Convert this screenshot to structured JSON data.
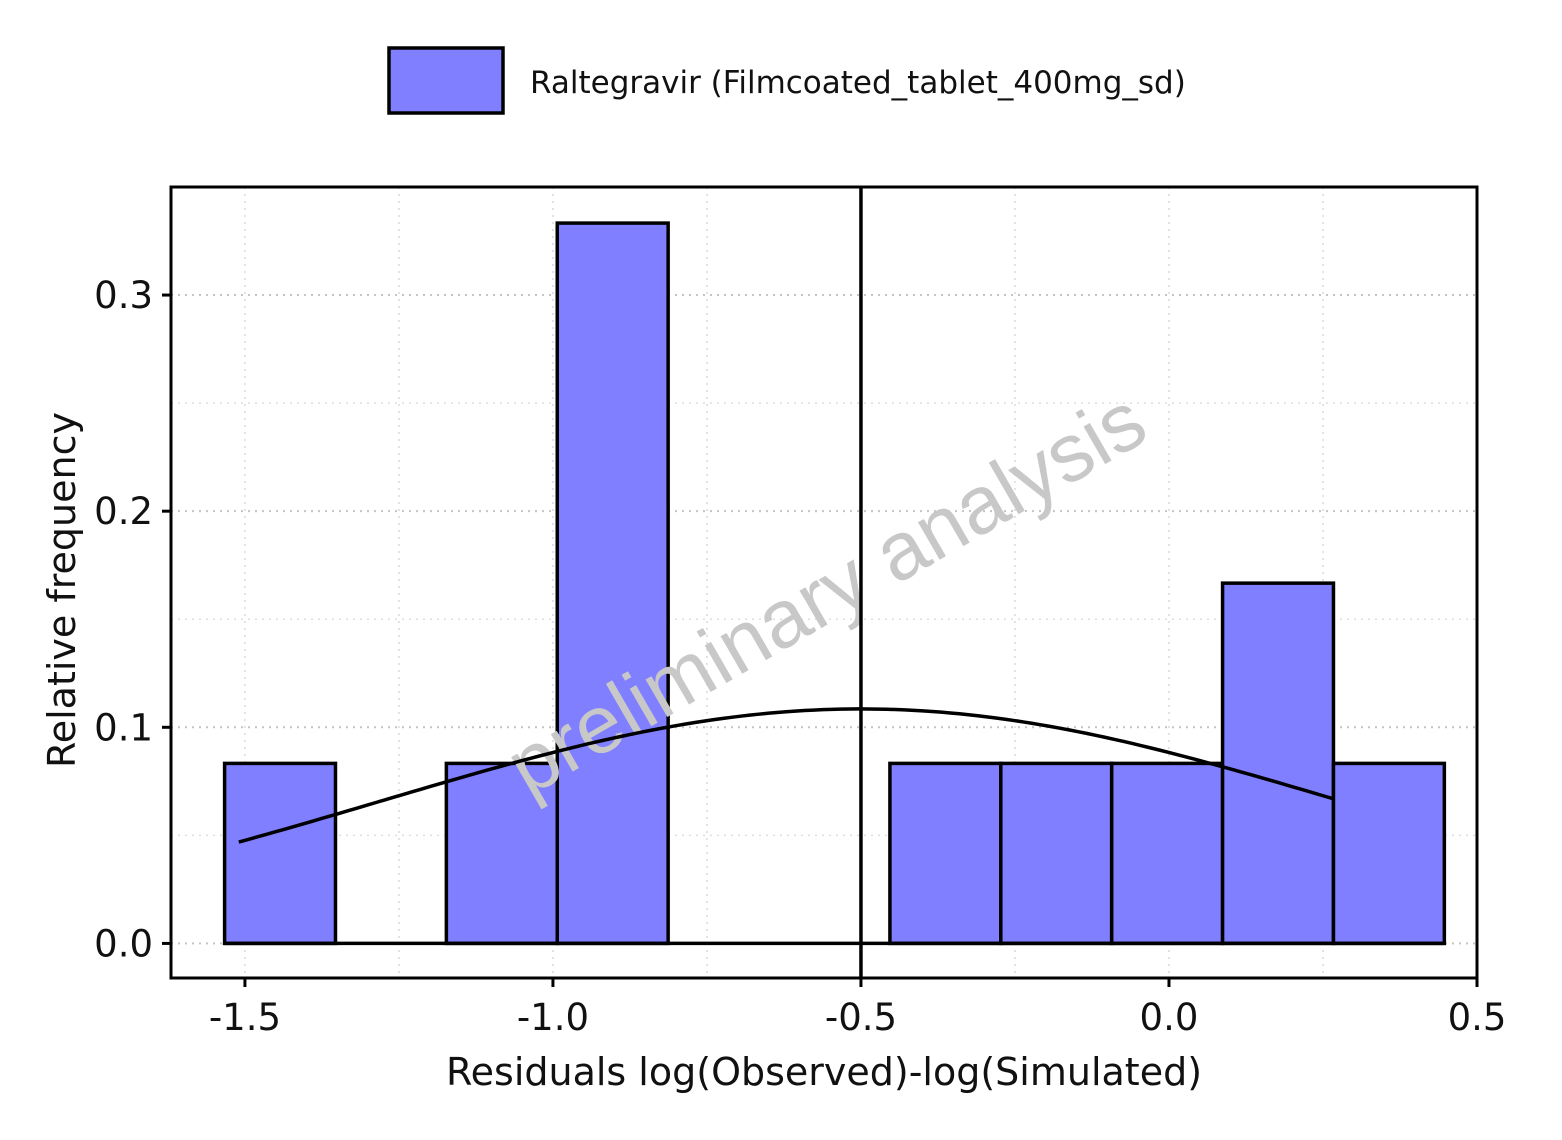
{
  "chart_data": {
    "type": "bar",
    "subtype": "histogram",
    "xlabel": "Residuals log(Observed)-log(Simulated)",
    "ylabel": "Relative frequency",
    "xlim": [
      -1.62,
      0.5
    ],
    "ylim": [
      -0.016,
      0.35
    ],
    "xticks": [
      -1.5,
      -1.0,
      -0.5,
      0.0,
      0.5
    ],
    "xtick_labels": [
      "-1.5",
      "-1.0",
      "-0.5",
      "0.0",
      "0.5"
    ],
    "yticks": [
      0.0,
      0.1,
      0.2,
      0.3
    ],
    "ytick_labels": [
      "0.0",
      "0.1",
      "0.2",
      "0.3"
    ],
    "grid": true,
    "legend_position": "top",
    "series": [
      {
        "name": "Raltegravir (Filmcoated_tablet_400mg_sd)",
        "color": "#7f7fff",
        "bins": [
          {
            "x0": -1.533,
            "x1": -1.353,
            "value": 0.0833
          },
          {
            "x0": -1.353,
            "x1": -1.173,
            "value": 0.0
          },
          {
            "x0": -1.173,
            "x1": -0.993,
            "value": 0.0833
          },
          {
            "x0": -0.993,
            "x1": -0.813,
            "value": 0.3333
          },
          {
            "x0": -0.813,
            "x1": -0.633,
            "value": 0.0
          },
          {
            "x0": -0.633,
            "x1": -0.453,
            "value": 0.0
          },
          {
            "x0": -0.453,
            "x1": -0.273,
            "value": 0.0833
          },
          {
            "x0": -0.273,
            "x1": -0.093,
            "value": 0.0833
          },
          {
            "x0": -0.093,
            "x1": 0.087,
            "value": 0.0833
          },
          {
            "x0": 0.087,
            "x1": 0.267,
            "value": 0.1667
          },
          {
            "x0": 0.267,
            "x1": 0.447,
            "value": 0.0833
          }
        ]
      }
    ],
    "density_curve": {
      "mean": -0.5,
      "peak": 0.1085,
      "x_range": [
        -1.51,
        0.267
      ],
      "color": "#000000"
    },
    "vline": {
      "x": -0.5,
      "color": "#000000"
    },
    "watermark": "preliminary analysis"
  }
}
